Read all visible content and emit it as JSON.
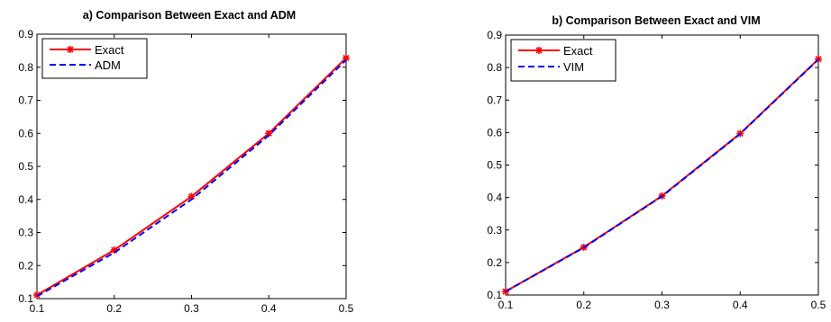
{
  "chart_data": [
    {
      "type": "line",
      "title": "a) Comparison Between Exact and  ADM",
      "x": [
        0.1,
        0.2,
        0.3,
        0.4,
        0.5
      ],
      "xlim": [
        0.1,
        0.5
      ],
      "ylim": [
        0.1,
        0.9
      ],
      "xticks": [
        "0.1",
        "0.2",
        "0.3",
        "0.4",
        "0.5"
      ],
      "yticks": [
        "0.1",
        "0.2",
        "0.3",
        "0.4",
        "0.5",
        "0.6",
        "0.7",
        "0.8",
        "0.9"
      ],
      "grid": false,
      "legend": "top-left",
      "series": [
        {
          "name": "Exact",
          "values": [
            0.111,
            0.247,
            0.409,
            0.6,
            0.828
          ],
          "color": "#ff0000",
          "style": "solid",
          "marker": "star"
        },
        {
          "name": "ADM",
          "values": [
            0.107,
            0.239,
            0.4,
            0.594,
            0.822
          ],
          "color": "#0000ff",
          "style": "dashed",
          "marker": "none"
        }
      ]
    },
    {
      "type": "line",
      "title": "b) Comparison Between Exact and VIM",
      "x": [
        0.1,
        0.2,
        0.3,
        0.4,
        0.5
      ],
      "xlim": [
        0.1,
        0.5
      ],
      "ylim": [
        0.1,
        0.9
      ],
      "xticks": [
        "0.1",
        "0.2",
        "0.3",
        "0.4",
        "0.5"
      ],
      "yticks": [
        "0.1",
        "0.2",
        "0.3",
        "0.4",
        "0.5",
        "0.6",
        "0.7",
        "0.8",
        "0.9"
      ],
      "grid": false,
      "legend": "top-left",
      "series": [
        {
          "name": "Exact",
          "values": [
            0.111,
            0.247,
            0.405,
            0.597,
            0.826
          ],
          "color": "#ff0000",
          "style": "solid",
          "marker": "star"
        },
        {
          "name": "VIM",
          "values": [
            0.111,
            0.246,
            0.404,
            0.596,
            0.825
          ],
          "color": "#0000ff",
          "style": "dashed",
          "marker": "none"
        }
      ]
    }
  ]
}
